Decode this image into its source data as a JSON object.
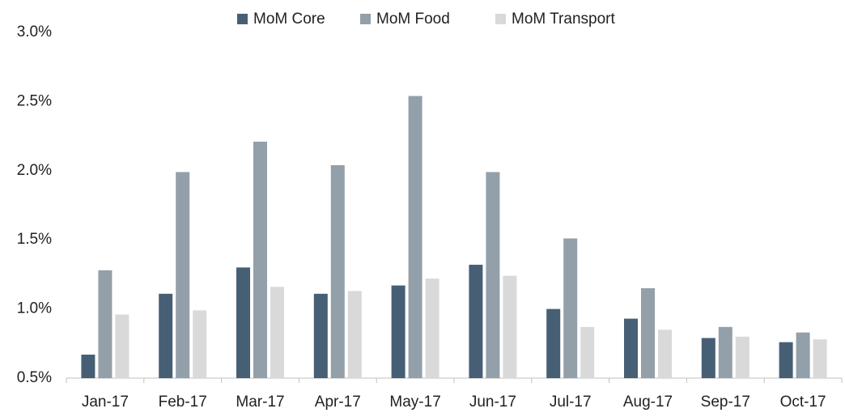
{
  "chart_data": {
    "type": "bar",
    "categories": [
      "Jan-17",
      "Feb-17",
      "Mar-17",
      "Apr-17",
      "May-17",
      "Jun-17",
      "Jul-17",
      "Aug-17",
      "Sep-17",
      "Oct-17"
    ],
    "series": [
      {
        "name": "MoM Core",
        "color": "#475f74",
        "values": [
          0.67,
          1.11,
          1.3,
          1.11,
          1.17,
          1.32,
          1.0,
          0.93,
          0.79,
          0.76
        ]
      },
      {
        "name": "MoM Food",
        "color": "#939fa9",
        "values": [
          1.28,
          1.99,
          2.21,
          2.04,
          2.54,
          1.99,
          1.51,
          1.15,
          0.87,
          0.83
        ]
      },
      {
        "name": "MoM Transport",
        "color": "#d9d9d9",
        "values": [
          0.96,
          0.99,
          1.16,
          1.13,
          1.22,
          1.24,
          0.87,
          0.85,
          0.8,
          0.78
        ]
      }
    ],
    "ylim": [
      0.5,
      3.0
    ],
    "yticks": [
      {
        "value": 0.5,
        "label": "0.5%"
      },
      {
        "value": 1.0,
        "label": "1.0%"
      },
      {
        "value": 1.5,
        "label": "1.5%"
      },
      {
        "value": 2.0,
        "label": "2.0%"
      },
      {
        "value": 2.5,
        "label": "2.5%"
      },
      {
        "value": 3.0,
        "label": "3.0%"
      }
    ],
    "grid": false,
    "legend": "top"
  }
}
